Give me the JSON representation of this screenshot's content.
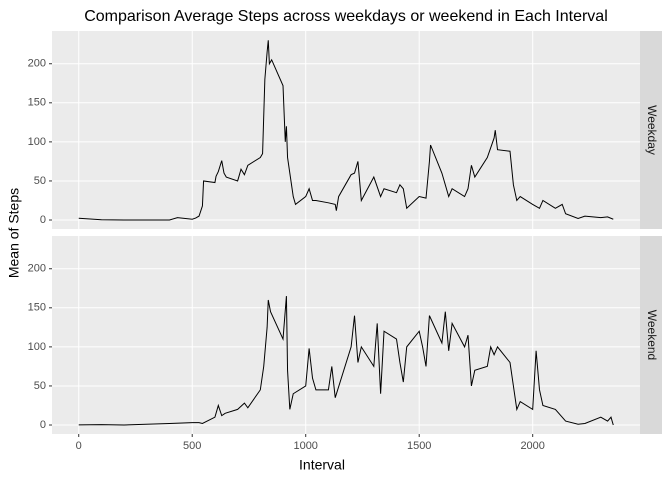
{
  "chart_data": {
    "type": "line",
    "title": "Comparison Average Steps across weekdays or weekend in Each Interval",
    "x_label": "Interval",
    "y_label": "Mean of Steps",
    "color": "#000000",
    "grid": true,
    "xlim": [
      -117.75,
      2472.75
    ],
    "ylim": [
      -11.5,
      241.9
    ],
    "xticks": [
      0,
      500,
      1000,
      1500,
      2000
    ],
    "yticks": [
      0,
      50,
      100,
      150,
      200
    ],
    "facets": [
      {
        "label": "Weekday",
        "x": [
          0,
          100,
          200,
          300,
          400,
          435,
          500,
          515,
          530,
          545,
          550,
          600,
          605,
          615,
          630,
          640,
          650,
          700,
          715,
          730,
          745,
          800,
          810,
          820,
          830,
          835,
          840,
          850,
          900,
          910,
          915,
          920,
          930,
          945,
          955,
          1000,
          1015,
          1030,
          1045,
          1100,
          1130,
          1135,
          1145,
          1200,
          1215,
          1230,
          1245,
          1300,
          1330,
          1345,
          1400,
          1415,
          1430,
          1445,
          1500,
          1530,
          1545,
          1550,
          1600,
          1630,
          1645,
          1700,
          1715,
          1730,
          1745,
          1800,
          1830,
          1835,
          1845,
          1900,
          1915,
          1930,
          1945,
          2000,
          2030,
          2045,
          2100,
          2130,
          2145,
          2200,
          2230,
          2300,
          2330,
          2355
        ],
        "values": [
          2.3,
          0.4,
          0,
          0,
          0,
          3,
          1,
          2.5,
          5,
          18,
          50,
          48,
          56,
          62,
          76,
          60,
          55,
          50,
          65,
          58,
          70,
          80,
          85,
          180,
          215,
          230,
          200,
          205,
          172,
          100,
          120,
          80,
          60,
          30,
          20,
          30,
          40,
          25,
          25,
          22,
          20,
          12,
          30,
          58,
          60,
          75,
          25,
          55,
          30,
          40,
          35,
          45,
          40,
          15,
          30,
          28,
          75,
          96,
          60,
          30,
          40,
          30,
          40,
          70,
          55,
          80,
          105,
          115,
          90,
          88,
          45,
          25,
          30,
          20,
          15,
          25,
          15,
          20,
          8,
          2,
          5,
          3,
          4,
          1
        ]
      },
      {
        "label": "Weekend",
        "x": [
          0,
          100,
          200,
          400,
          500,
          530,
          545,
          600,
          615,
          630,
          645,
          700,
          730,
          745,
          800,
          815,
          830,
          835,
          845,
          900,
          915,
          920,
          930,
          945,
          1000,
          1015,
          1030,
          1045,
          1100,
          1115,
          1130,
          1200,
          1215,
          1230,
          1245,
          1300,
          1315,
          1330,
          1345,
          1400,
          1415,
          1430,
          1445,
          1500,
          1515,
          1530,
          1545,
          1600,
          1615,
          1630,
          1645,
          1700,
          1715,
          1730,
          1745,
          1800,
          1815,
          1830,
          1845,
          1900,
          1915,
          1930,
          1945,
          2000,
          2015,
          2030,
          2045,
          2100,
          2130,
          2145,
          2200,
          2230,
          2300,
          2330,
          2345,
          2355
        ],
        "values": [
          0.2,
          0.5,
          0,
          2,
          3,
          3,
          2,
          10,
          25,
          12,
          15,
          20,
          28,
          22,
          45,
          75,
          125,
          160,
          145,
          110,
          165,
          70,
          20,
          40,
          50,
          98,
          60,
          45,
          45,
          75,
          35,
          100,
          140,
          80,
          100,
          75,
          130,
          40,
          120,
          110,
          80,
          55,
          100,
          120,
          100,
          75,
          140,
          105,
          145,
          95,
          130,
          100,
          115,
          50,
          70,
          75,
          100,
          90,
          100,
          80,
          50,
          20,
          30,
          20,
          95,
          45,
          25,
          20,
          10,
          5,
          1,
          2,
          10,
          5,
          10,
          0
        ]
      }
    ]
  }
}
